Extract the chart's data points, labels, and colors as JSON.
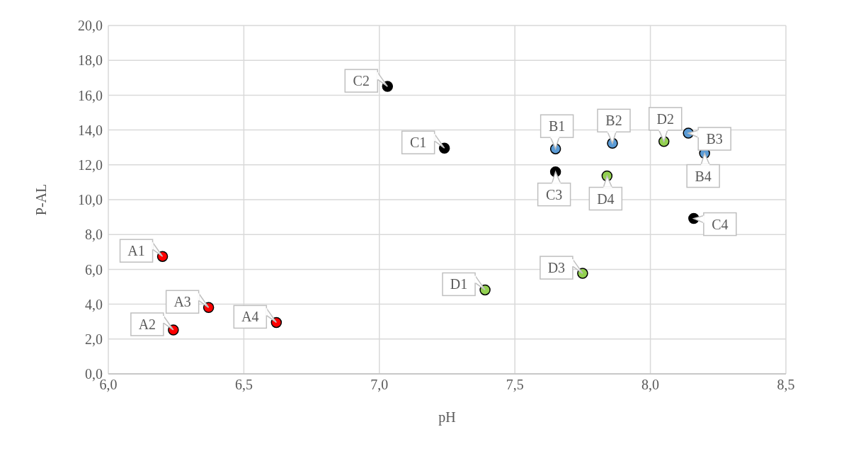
{
  "chart_data": {
    "type": "scatter",
    "xlabel": "pH",
    "ylabel": "P-AL",
    "xlim": [
      6.0,
      8.5
    ],
    "xticks": [
      {
        "value": 6.0,
        "label": "6,0"
      },
      {
        "value": 6.5,
        "label": "6,5"
      },
      {
        "value": 7.0,
        "label": "7,0"
      },
      {
        "value": 7.5,
        "label": "7,5"
      },
      {
        "value": 8.0,
        "label": "8,0"
      },
      {
        "value": 8.5,
        "label": "8,5"
      }
    ],
    "ylim": [
      0,
      20
    ],
    "yticks": [
      {
        "value": 0,
        "label": "0,0"
      },
      {
        "value": 2,
        "label": "2,0"
      },
      {
        "value": 4,
        "label": "4,0"
      },
      {
        "value": 6,
        "label": "6,0"
      },
      {
        "value": 8,
        "label": "8,0"
      },
      {
        "value": 10,
        "label": "10,0"
      },
      {
        "value": 12,
        "label": "12,0"
      },
      {
        "value": 14,
        "label": "14,0"
      },
      {
        "value": 16,
        "label": "16,0"
      },
      {
        "value": 18,
        "label": "18,0"
      },
      {
        "value": 20,
        "label": "20,0"
      }
    ],
    "grid": true,
    "marker": "circle",
    "series": [
      {
        "color": "#ff0000",
        "x": [
          6.2,
          6.24,
          6.37,
          6.62
        ],
        "values": [
          6.74,
          2.52,
          3.81,
          2.95
        ]
      },
      {
        "color": "#5b9bd5",
        "x": [
          7.65,
          7.86,
          8.14,
          8.2
        ],
        "values": [
          12.92,
          13.24,
          13.82,
          12.66
        ]
      },
      {
        "color": "#000000",
        "x": [
          7.24,
          7.03,
          7.65,
          8.16
        ],
        "values": [
          12.96,
          16.5,
          11.6,
          8.92
        ]
      },
      {
        "color": "#92d050",
        "x": [
          7.39,
          8.05,
          7.75,
          7.84
        ],
        "values": [
          4.82,
          13.34,
          5.77,
          11.36
        ]
      }
    ],
    "annotations": [
      {
        "text": "A1",
        "x": 6.2,
        "y": 6.74
      },
      {
        "text": "A2",
        "x": 6.24,
        "y": 2.52
      },
      {
        "text": "A3",
        "x": 6.37,
        "y": 3.81
      },
      {
        "text": "A4",
        "x": 6.62,
        "y": 2.95
      },
      {
        "text": "B1",
        "x": 7.65,
        "y": 12.92
      },
      {
        "text": "B2",
        "x": 7.86,
        "y": 13.24
      },
      {
        "text": "B3",
        "x": 8.14,
        "y": 13.82
      },
      {
        "text": "B4",
        "x": 8.2,
        "y": 12.66
      },
      {
        "text": "C1",
        "x": 7.24,
        "y": 12.96
      },
      {
        "text": "C2",
        "x": 7.03,
        "y": 16.5
      },
      {
        "text": "C3",
        "x": 7.65,
        "y": 11.6
      },
      {
        "text": "C4",
        "x": 8.16,
        "y": 8.92
      },
      {
        "text": "D1",
        "x": 7.39,
        "y": 4.82
      },
      {
        "text": "D2",
        "x": 8.05,
        "y": 13.34
      },
      {
        "text": "D3",
        "x": 7.75,
        "y": 5.77
      },
      {
        "text": "D4",
        "x": 7.84,
        "y": 11.36
      }
    ]
  }
}
